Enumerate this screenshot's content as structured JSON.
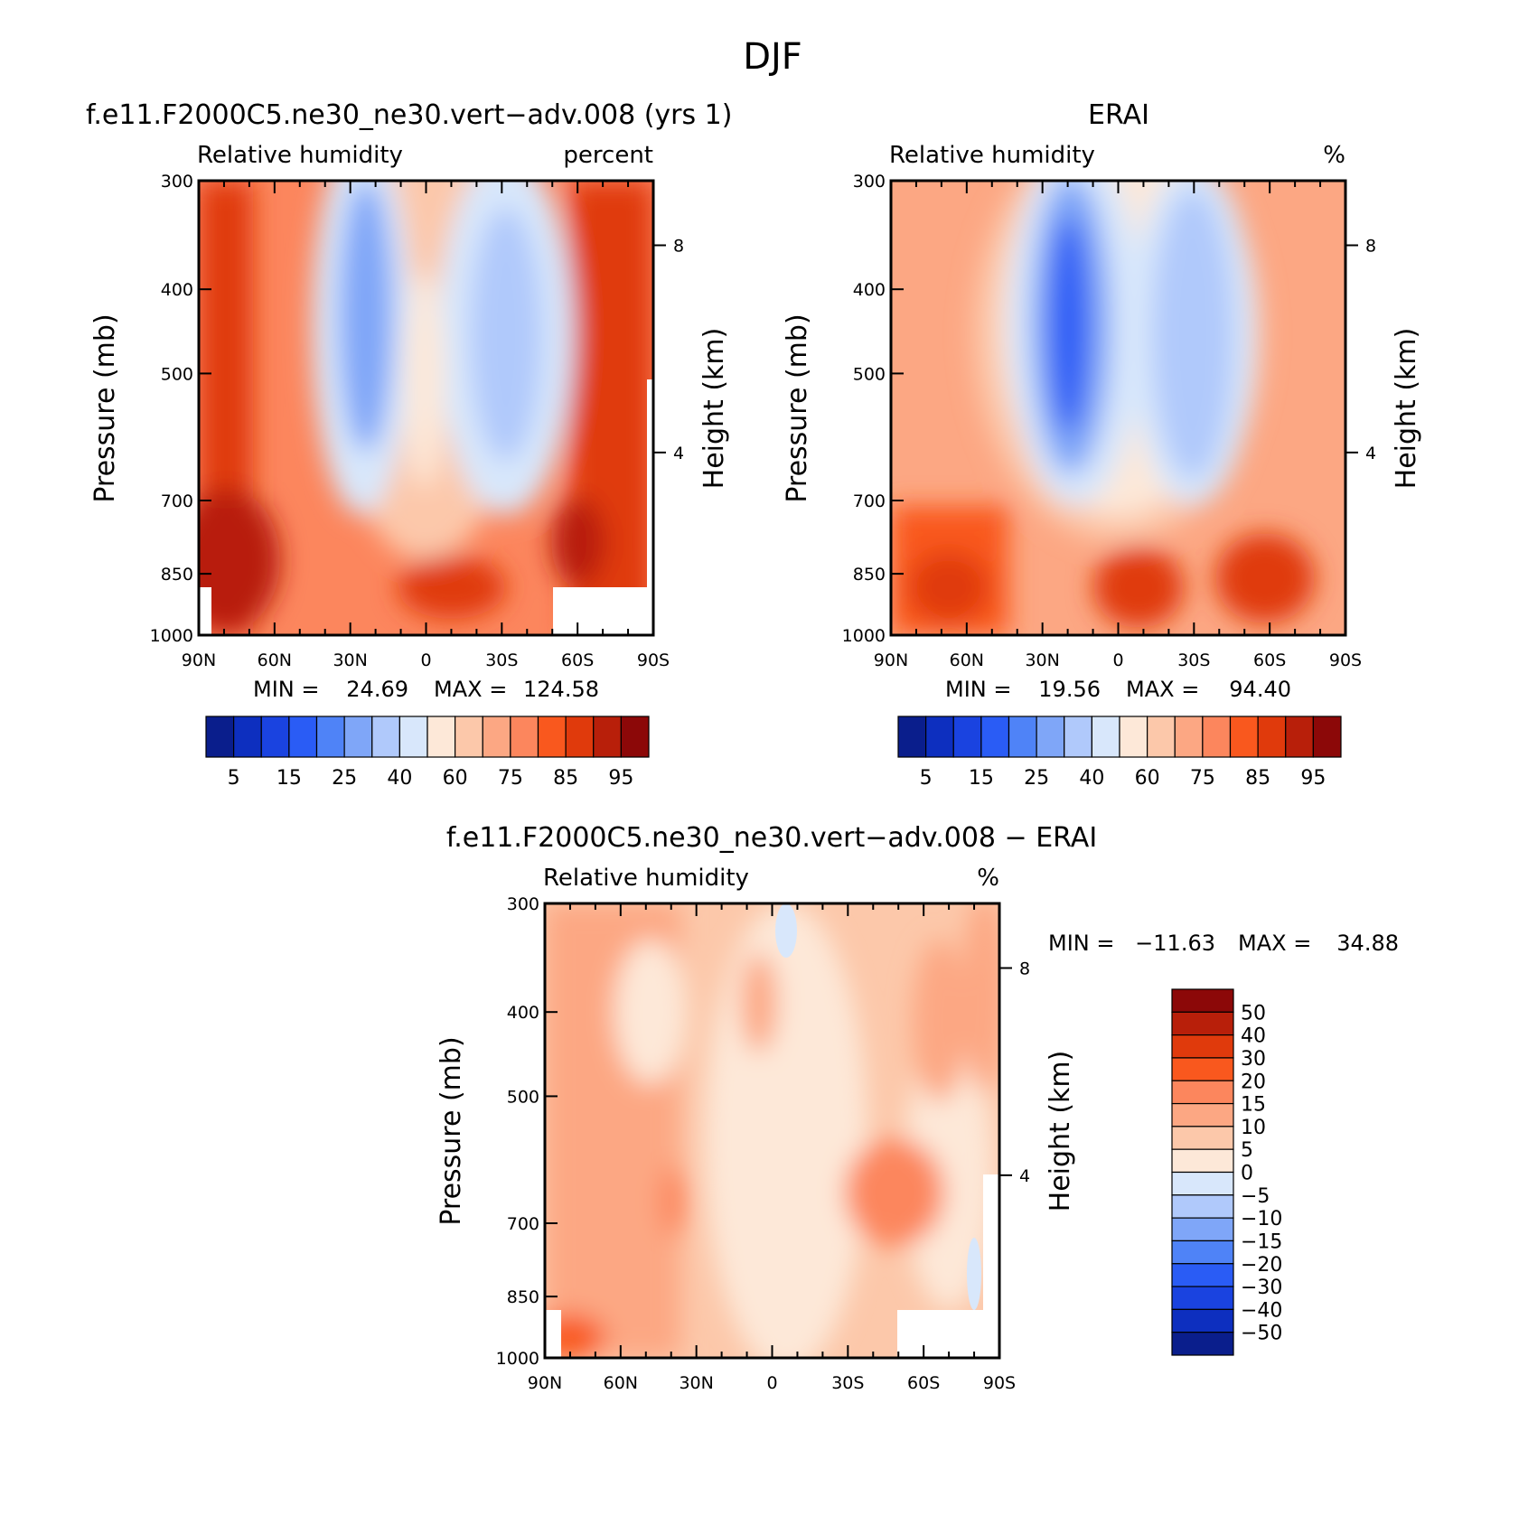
{
  "figure": {
    "title": "DJF"
  },
  "chart_data": [
    {
      "type": "heatmap",
      "title": "f.e11.F2000C5.ne30_ne30.vert−adv.008 (yrs 1)",
      "left_label": "Relative humidity",
      "right_label": "percent",
      "xlabel": "",
      "ylabel": "Pressure (mb)",
      "y2label": "Height (km)",
      "x_ticklabels": [
        "90N",
        "60N",
        "30N",
        "0",
        "30S",
        "60S",
        "90S"
      ],
      "y_ticklabels": [
        "300",
        "400",
        "500",
        "700",
        "850",
        "1000"
      ],
      "y2_ticklabels": [
        "8",
        "4"
      ],
      "stats": {
        "min_label": "MIN =",
        "min": "24.69",
        "max_label": "MAX =",
        "max": "124.58"
      },
      "colorbar": {
        "orientation": "horizontal",
        "labels": [
          "5",
          "15",
          "25",
          "40",
          "60",
          "75",
          "85",
          "95"
        ],
        "colors": [
          "#0a1e8c",
          "#0d2fbf",
          "#1a43e0",
          "#2a5cf5",
          "#4f83f7",
          "#7fa6f8",
          "#b0c9fb",
          "#d8e7fb",
          "#fde8d8",
          "#fcc8aa",
          "#fca783",
          "#fc865d",
          "#f9581e",
          "#e03a0c",
          "#b81f0a",
          "#8c0808"
        ]
      },
      "grid": false
    },
    {
      "type": "heatmap",
      "title": "ERAI",
      "left_label": "Relative humidity",
      "right_label": "%",
      "xlabel": "",
      "ylabel": "Pressure (mb)",
      "y2label": "Height (km)",
      "x_ticklabels": [
        "90N",
        "60N",
        "30N",
        "0",
        "30S",
        "60S",
        "90S"
      ],
      "y_ticklabels": [
        "300",
        "400",
        "500",
        "700",
        "850",
        "1000"
      ],
      "y2_ticklabels": [
        "8",
        "4"
      ],
      "stats": {
        "min_label": "MIN =",
        "min": "19.56",
        "max_label": "MAX =",
        "max": "94.40"
      },
      "colorbar": {
        "orientation": "horizontal",
        "labels": [
          "5",
          "15",
          "25",
          "40",
          "60",
          "75",
          "85",
          "95"
        ],
        "colors": [
          "#0a1e8c",
          "#0d2fbf",
          "#1a43e0",
          "#2a5cf5",
          "#4f83f7",
          "#7fa6f8",
          "#b0c9fb",
          "#d8e7fb",
          "#fde8d8",
          "#fcc8aa",
          "#fca783",
          "#fc865d",
          "#f9581e",
          "#e03a0c",
          "#b81f0a",
          "#8c0808"
        ]
      },
      "grid": false
    },
    {
      "type": "heatmap",
      "title": "f.e11.F2000C5.ne30_ne30.vert−adv.008 − ERAI",
      "left_label": "Relative humidity",
      "right_label": "%",
      "xlabel": "",
      "ylabel": "Pressure (mb)",
      "y2label": "Height (km)",
      "x_ticklabels": [
        "90N",
        "60N",
        "30N",
        "0",
        "30S",
        "60S",
        "90S"
      ],
      "y_ticklabels": [
        "300",
        "400",
        "500",
        "700",
        "850",
        "1000"
      ],
      "y2_ticklabels": [
        "8",
        "4"
      ],
      "stats": {
        "min_label": "MIN =",
        "min": "−11.63",
        "max_label": "MAX =",
        "max": "34.88"
      },
      "colorbar": {
        "orientation": "vertical",
        "labels": [
          "50",
          "40",
          "30",
          "20",
          "15",
          "10",
          "5",
          "0",
          "−5",
          "−10",
          "−15",
          "−20",
          "−30",
          "−40",
          "−50"
        ],
        "colors": [
          "#8c0808",
          "#b81f0a",
          "#e03a0c",
          "#f9581e",
          "#fc865d",
          "#fca783",
          "#fcc8aa",
          "#fde8d8",
          "#d8e7fb",
          "#b0c9fb",
          "#7fa6f8",
          "#4f83f7",
          "#2a5cf5",
          "#1a43e0",
          "#0d2fbf",
          "#0a1e8c"
        ]
      },
      "grid": false
    }
  ]
}
